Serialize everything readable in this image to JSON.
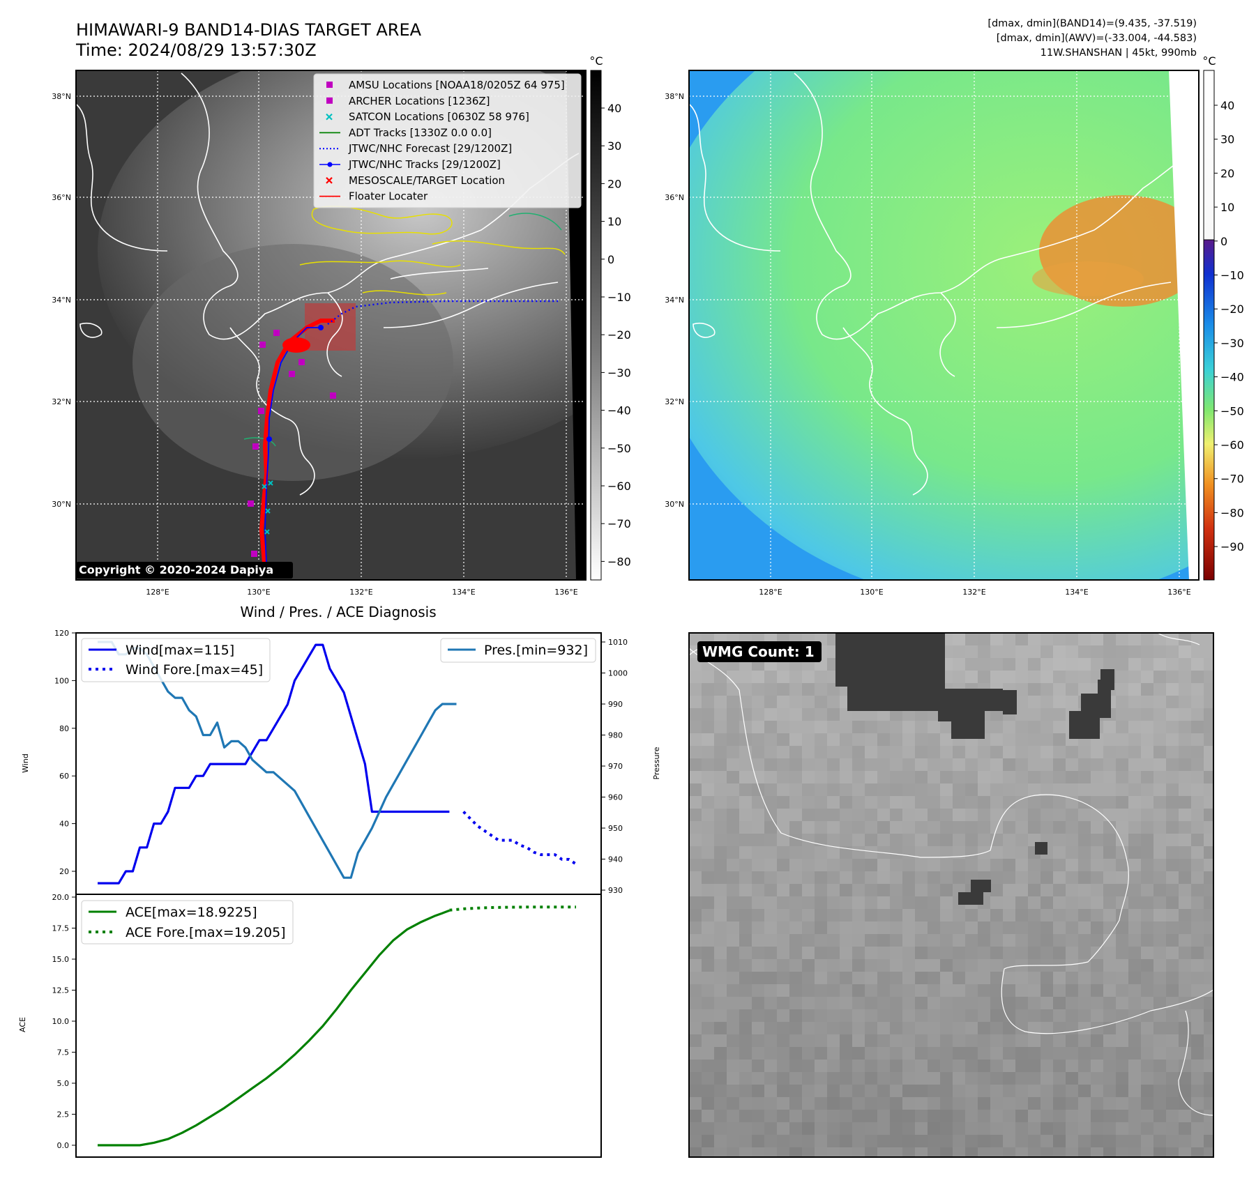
{
  "header": {
    "title_line1": "HIMAWARI-9 BAND14-DIAS TARGET AREA",
    "title_line2": "Time: 2024/08/29 13:57:30Z",
    "info_line1": "[dmax, dmin](BAND14)=(9.435, -37.519)",
    "info_line2": "[dmax, dmin](AWV)=(-33.004, -44.583)",
    "info_line3": "11W.SHANSHAN | 45kt, 990mb"
  },
  "map_axes": {
    "lat_labels": [
      "38°N",
      "36°N",
      "34°N",
      "32°N",
      "30°N"
    ],
    "lon_labels": [
      "128°E",
      "130°E",
      "132°E",
      "134°E",
      "136°E"
    ]
  },
  "ir_panel": {
    "legend": [
      {
        "label": "AMSU Locations [NOAA18/0205Z 64 975]",
        "marker": "square",
        "color": "#c000c0"
      },
      {
        "label": "ARCHER Locations [1236Z]",
        "marker": "square",
        "color": "#c000c0"
      },
      {
        "label": "SATCON Locations [0630Z 58 976]",
        "marker": "x",
        "color": "#00c0c0"
      },
      {
        "label": "ADT Tracks [1330Z 0.0 0.0]",
        "marker": "line",
        "color": "#008000"
      },
      {
        "label": "JTWC/NHC Forecast [29/1200Z]",
        "marker": "dotted",
        "color": "#0000ff"
      },
      {
        "label": "JTWC/NHC Tracks [29/1200Z]",
        "marker": "line-dot",
        "color": "#0000ff"
      },
      {
        "label": "MESOSCALE/TARGET Location",
        "marker": "x",
        "color": "#ff0000"
      },
      {
        "label": "Floater Locater",
        "marker": "line",
        "color": "#ff0000"
      }
    ],
    "copyright": "Copyright © 2020-2024 Dapiya",
    "colorbar_unit": "°C",
    "colorbar_ticks": [
      "40",
      "30",
      "20",
      "10",
      "0",
      "−10",
      "−20",
      "−30",
      "−40",
      "−50",
      "−60",
      "−70",
      "−80"
    ]
  },
  "wv_panel": {
    "colorbar_unit": "°C",
    "colorbar_ticks": [
      "40",
      "30",
      "20",
      "10",
      "0",
      "−10",
      "−20",
      "−30",
      "−40",
      "−50",
      "−60",
      "−70",
      "−80",
      "−90"
    ]
  },
  "diag_panel": {
    "title": "Wind / Pres. / ACE Diagnosis",
    "wind_ylabel": "Wind",
    "pres_ylabel": "Pressure",
    "ace_ylabel": "ACE",
    "wind_ticks": [
      "120",
      "100",
      "80",
      "60",
      "40",
      "20"
    ],
    "pres_ticks": [
      "1010",
      "1000",
      "990",
      "980",
      "970",
      "960",
      "950",
      "940",
      "930"
    ],
    "ace_ticks": [
      "20.0",
      "17.5",
      "15.0",
      "12.5",
      "10.0",
      "7.5",
      "5.0",
      "2.5",
      "0.0"
    ],
    "legend_wind": "Wind[max=115]",
    "legend_wind_fore": "Wind Fore.[max=45]",
    "legend_pres": "Pres.[min=932]",
    "legend_ace": "ACE[max=18.9225]",
    "legend_ace_fore": "ACE Fore.[max=19.205]"
  },
  "wmg_panel": {
    "badge": "WMG Count: 1"
  },
  "colors": {
    "wind": "#0000ee",
    "pressure": "#1f77b4",
    "ace": "#008000",
    "floater": "#ff0000",
    "ir_bg": "#3a3a3a",
    "wv_bg": "#6fe07a"
  },
  "chart_data": [
    {
      "type": "line",
      "name": "Wind / Pres.",
      "title": "Wind / Pres. / ACE Diagnosis",
      "ylabel": "Wind",
      "y2label": "Pressure",
      "ylim": [
        10,
        120
      ],
      "y2lim": [
        928,
        1013
      ],
      "x": [
        0,
        1,
        2,
        3,
        4,
        5,
        6,
        7,
        8,
        9,
        10,
        11,
        12,
        13,
        14,
        15,
        16,
        17,
        18,
        19,
        20,
        21,
        22,
        23,
        24,
        25,
        26,
        27,
        28,
        29,
        30,
        31,
        32,
        33,
        34,
        35,
        36,
        37,
        38,
        39,
        40,
        41,
        42,
        43,
        44,
        45,
        46,
        47,
        48,
        49,
        50,
        51,
        52,
        53,
        54,
        55,
        56,
        57,
        58,
        59,
        60,
        61,
        62,
        63,
        64,
        65,
        66,
        67,
        68
      ],
      "series": [
        {
          "name": "Wind[max=115]",
          "axis": "left",
          "x": [
            0,
            1,
            2,
            3,
            4,
            5,
            6,
            7,
            8,
            9,
            10,
            11,
            12,
            13,
            14,
            15,
            16,
            17,
            18,
            19,
            20,
            21,
            22,
            23,
            24,
            25,
            26,
            27,
            28,
            29,
            30,
            31,
            32,
            33,
            34,
            35,
            36,
            37,
            38,
            39,
            40,
            41,
            42,
            43,
            44,
            45,
            46,
            47,
            48,
            49,
            50
          ],
          "values": [
            15,
            15,
            15,
            15,
            20,
            20,
            30,
            30,
            40,
            40,
            45,
            55,
            55,
            55,
            60,
            60,
            65,
            65,
            65,
            65,
            65,
            65,
            70,
            75,
            75,
            80,
            85,
            90,
            100,
            105,
            110,
            115,
            115,
            105,
            100,
            95,
            85,
            75,
            65,
            45,
            45,
            45,
            45,
            45,
            45,
            45,
            45,
            45,
            45,
            45,
            45
          ]
        },
        {
          "name": "Wind Fore.[max=45]",
          "axis": "left",
          "style": "dotted",
          "x": [
            52,
            53,
            54,
            55,
            56,
            57,
            58,
            59,
            60,
            61,
            62,
            63,
            64,
            65,
            66,
            67,
            68
          ],
          "values": [
            45,
            42,
            39,
            37,
            35,
            33,
            33,
            33,
            31,
            30,
            28,
            27,
            27,
            27,
            25,
            25,
            23
          ]
        },
        {
          "name": "Pres.[min=932]",
          "axis": "right",
          "x": [
            0,
            1,
            2,
            3,
            4,
            5,
            6,
            7,
            8,
            9,
            10,
            11,
            12,
            13,
            14,
            15,
            16,
            17,
            18,
            19,
            20,
            21,
            22,
            23,
            24,
            25,
            26,
            27,
            28,
            29,
            30,
            31,
            32,
            33,
            34,
            35,
            36,
            37,
            38,
            39,
            40,
            41,
            42,
            43,
            44,
            45,
            46,
            47,
            48,
            49,
            50,
            51
          ],
          "values": [
            1010,
            1010,
            1010,
            1006,
            1006,
            1008,
            1008,
            1006,
            1002,
            998,
            994,
            992,
            992,
            988,
            986,
            980,
            980,
            984,
            976,
            978,
            978,
            976,
            972,
            970,
            968,
            968,
            966,
            964,
            962,
            958,
            954,
            950,
            946,
            942,
            938,
            934,
            934,
            942,
            946,
            950,
            955,
            960,
            964,
            968,
            972,
            976,
            980,
            984,
            988,
            990,
            990,
            990
          ]
        }
      ]
    },
    {
      "type": "line",
      "name": "ACE",
      "ylabel": "ACE",
      "ylim": [
        -1,
        20
      ],
      "series": [
        {
          "name": "ACE[max=18.9225]",
          "x": [
            0,
            2,
            4,
            6,
            8,
            10,
            12,
            14,
            16,
            18,
            20,
            22,
            24,
            26,
            28,
            30,
            32,
            34,
            36,
            38,
            40,
            42,
            44,
            46,
            48,
            49,
            50
          ],
          "values": [
            0,
            0,
            0,
            0,
            0.2,
            0.5,
            1.0,
            1.6,
            2.3,
            3.0,
            3.8,
            4.6,
            5.4,
            6.3,
            7.3,
            8.4,
            9.6,
            11.0,
            12.5,
            13.9,
            15.3,
            16.5,
            17.4,
            18.0,
            18.5,
            18.7,
            18.9225
          ]
        },
        {
          "name": "ACE Fore.[max=19.205]",
          "style": "dotted",
          "x": [
            50,
            52,
            54,
            56,
            58,
            60,
            62,
            64,
            66,
            68
          ],
          "values": [
            18.95,
            19.05,
            19.12,
            19.16,
            19.18,
            19.19,
            19.2,
            19.2,
            19.205,
            19.205
          ]
        }
      ]
    }
  ]
}
